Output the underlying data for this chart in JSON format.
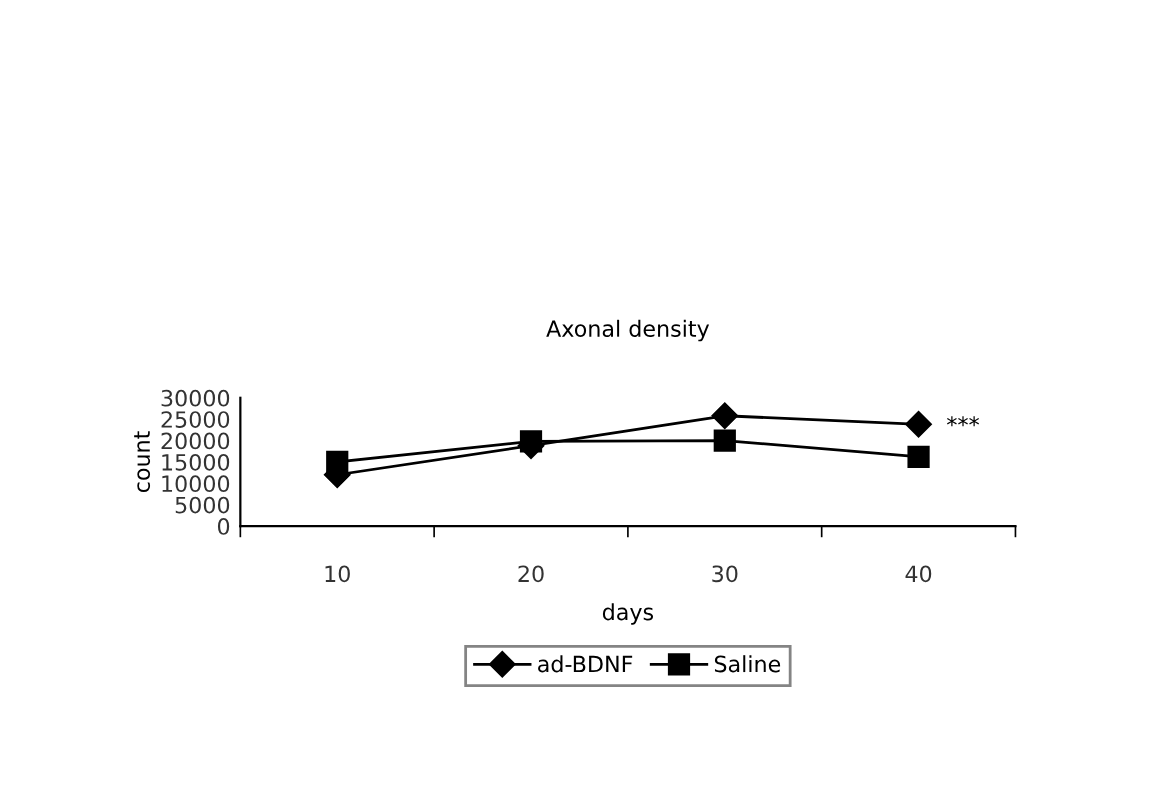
{
  "chart_data": {
    "type": "line",
    "title": "Axonal density",
    "xlabel": "days",
    "ylabel": "count",
    "categories": [
      "10",
      "20",
      "30",
      "40"
    ],
    "series": [
      {
        "name": "ad-BDNF",
        "color": "#000000",
        "marker": "diamond",
        "values": [
          12000,
          18800,
          25800,
          23800
        ]
      },
      {
        "name": "Saline",
        "color": "#000000",
        "marker": "square",
        "values": [
          15000,
          19800,
          20000,
          16200
        ]
      }
    ],
    "ylim": [
      0,
      30000
    ],
    "yticks": [
      0,
      5000,
      10000,
      15000,
      20000,
      25000,
      30000
    ],
    "annotations": [
      {
        "text": "***",
        "x": "40",
        "y": 23800
      }
    ],
    "grid": false,
    "legend": "bottom",
    "line_style": "solid"
  }
}
